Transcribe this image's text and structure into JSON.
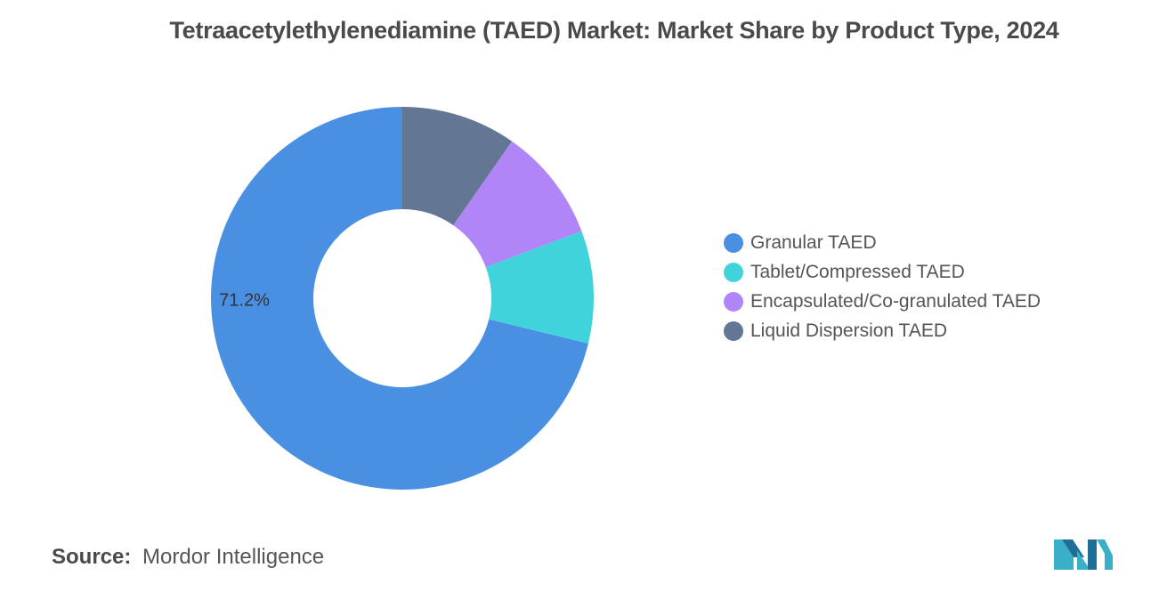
{
  "chart_data": {
    "type": "pie",
    "title": "Tetraacetylethylenediamine (TAED) Market: Market Share by Product Type, 2024",
    "categories": [
      "Granular TAED",
      "Tablet/Compressed TAED",
      "Encapsulated/Co-granulated TAED",
      "Liquid Dispersion TAED"
    ],
    "values": [
      71.2,
      9.5,
      9.6,
      9.7
    ],
    "colors": [
      "#4a90e2",
      "#41d3db",
      "#b085f8",
      "#637694"
    ],
    "data_labels": [
      "71.2%",
      "",
      "",
      ""
    ],
    "donut": true,
    "start_angle_deg": 0,
    "direction": "counterclockwise",
    "legend_position": "right"
  },
  "source": {
    "label": "Source:",
    "value": "Mordor Intelligence"
  },
  "logo": {
    "icon": "mordor-intelligence-logo-icon",
    "colors": [
      "#3ab0c8",
      "#1f6e97"
    ]
  }
}
